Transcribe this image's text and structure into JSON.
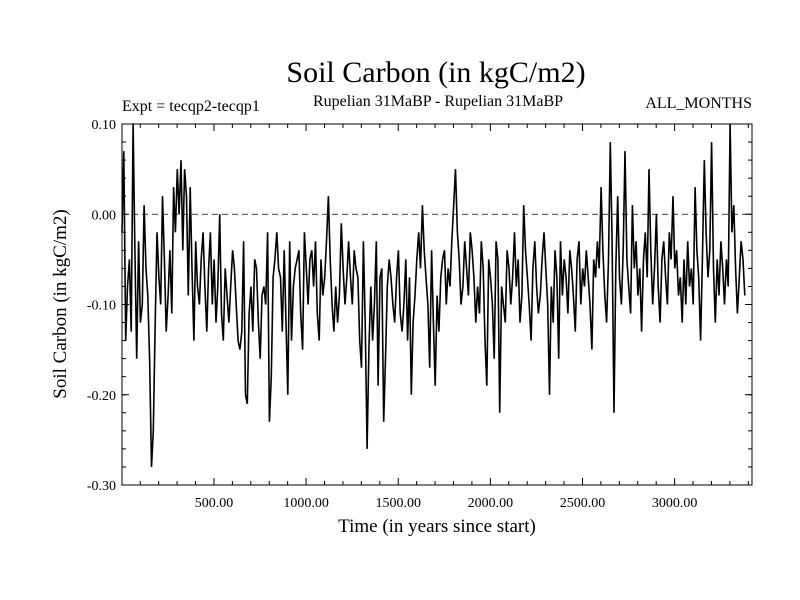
{
  "chart_data": {
    "type": "line",
    "title": "Soil Carbon (in kgC/m2)",
    "subtitle_left": "Expt = tecqp2-tecqp1",
    "subtitle_center": "Rupelian  31MaBP - Rupelian  31MaBP",
    "subtitle_right": "ALL_MONTHS",
    "xlabel": "Time (in years since start)",
    "ylabel": "Soil Carbon (in kgC/m2)",
    "xlim": [
      1,
      3420
    ],
    "ylim": [
      -0.3,
      0.1
    ],
    "x_ticks": [
      500,
      1000,
      1500,
      2000,
      2500,
      3000
    ],
    "x_tick_labels": [
      "500.00",
      "1000.00",
      "1500.00",
      "2000.00",
      "2500.00",
      "3000.00"
    ],
    "y_ticks": [
      0.1,
      0.0,
      -0.1,
      -0.2,
      -0.3
    ],
    "y_tick_labels": [
      "0.10",
      "0.00",
      "-0.10",
      "-0.20",
      "-0.30"
    ],
    "reference_line": 0.0,
    "line_color": "#000000",
    "series": [
      {
        "x_start": 1,
        "x_step": 10,
        "values": [
          -0.02,
          0.07,
          -0.14,
          -0.08,
          -0.05,
          -0.13,
          0.1,
          -0.04,
          -0.16,
          -0.03,
          -0.12,
          -0.1,
          0.01,
          -0.06,
          -0.09,
          -0.16,
          -0.28,
          -0.24,
          -0.12,
          -0.02,
          -0.07,
          -0.1,
          0.02,
          -0.05,
          -0.13,
          -0.09,
          -0.04,
          -0.11,
          0.03,
          -0.02,
          0.05,
          0.0,
          0.06,
          -0.04,
          0.05,
          0.02,
          -0.09,
          0.03,
          -0.06,
          -0.14,
          -0.03,
          -0.08,
          -0.1,
          -0.05,
          -0.02,
          -0.08,
          -0.13,
          -0.06,
          -0.02,
          -0.1,
          -0.05,
          -0.12,
          -0.08,
          0.0,
          -0.11,
          -0.14,
          -0.06,
          -0.09,
          -0.12,
          -0.08,
          -0.04,
          -0.06,
          -0.1,
          -0.14,
          -0.15,
          -0.13,
          -0.03,
          -0.2,
          -0.21,
          -0.11,
          -0.08,
          -0.13,
          -0.05,
          -0.06,
          -0.12,
          -0.16,
          -0.09,
          -0.08,
          -0.1,
          -0.02,
          -0.23,
          -0.18,
          -0.07,
          -0.05,
          -0.02,
          -0.06,
          -0.07,
          -0.13,
          -0.04,
          -0.12,
          -0.2,
          -0.03,
          -0.14,
          -0.08,
          -0.06,
          -0.05,
          -0.04,
          -0.11,
          -0.15,
          -0.02,
          -0.06,
          -0.1,
          -0.05,
          -0.04,
          -0.08,
          -0.03,
          -0.11,
          -0.14,
          -0.05,
          -0.09,
          -0.07,
          -0.03,
          0.02,
          -0.05,
          -0.1,
          -0.13,
          -0.08,
          -0.12,
          -0.09,
          -0.01,
          -0.06,
          -0.1,
          -0.07,
          -0.03,
          -0.07,
          -0.1,
          -0.04,
          -0.06,
          -0.07,
          -0.14,
          -0.17,
          -0.03,
          -0.12,
          -0.26,
          -0.15,
          -0.08,
          -0.14,
          -0.1,
          -0.03,
          -0.19,
          -0.07,
          -0.06,
          -0.23,
          -0.16,
          -0.08,
          -0.05,
          -0.07,
          -0.1,
          -0.12,
          -0.07,
          -0.04,
          -0.11,
          -0.13,
          -0.1,
          -0.05,
          -0.14,
          -0.07,
          -0.2,
          -0.12,
          -0.09,
          -0.05,
          -0.02,
          -0.06,
          0.01,
          -0.04,
          -0.07,
          -0.1,
          -0.17,
          -0.04,
          -0.12,
          -0.19,
          -0.09,
          -0.13,
          -0.07,
          -0.05,
          -0.04,
          -0.1,
          -0.06,
          -0.08,
          -0.03,
          0.01,
          0.05,
          -0.02,
          -0.05,
          -0.1,
          -0.08,
          -0.03,
          -0.06,
          -0.09,
          -0.02,
          -0.04,
          -0.07,
          -0.12,
          -0.08,
          -0.11,
          -0.03,
          -0.06,
          -0.14,
          -0.19,
          -0.05,
          -0.07,
          -0.1,
          -0.16,
          -0.03,
          -0.05,
          -0.22,
          -0.08,
          -0.1,
          -0.12,
          -0.04,
          -0.06,
          -0.1,
          -0.07,
          -0.02,
          -0.08,
          -0.05,
          -0.12,
          -0.09,
          0.01,
          -0.04,
          -0.07,
          -0.1,
          -0.14,
          -0.06,
          -0.03,
          -0.08,
          -0.11,
          -0.09,
          -0.05,
          -0.02,
          -0.06,
          -0.1,
          -0.2,
          -0.08,
          -0.12,
          -0.04,
          -0.07,
          -0.16,
          -0.03,
          -0.09,
          -0.05,
          -0.07,
          -0.11,
          -0.04,
          -0.06,
          -0.09,
          -0.13,
          -0.05,
          -0.03,
          -0.1,
          -0.06,
          -0.08,
          -0.04,
          -0.07,
          -0.1,
          -0.15,
          -0.05,
          -0.07,
          -0.03,
          -0.06,
          0.03,
          -0.04,
          -0.09,
          -0.12,
          -0.05,
          0.08,
          -0.03,
          -0.22,
          -0.06,
          0.02,
          -0.07,
          -0.1,
          -0.04,
          0.07,
          -0.05,
          -0.08,
          -0.11,
          0.01,
          -0.06,
          -0.03,
          -0.09,
          -0.06,
          -0.13,
          -0.05,
          -0.02,
          -0.07,
          0.05,
          -0.04,
          -0.1,
          -0.06,
          0.0,
          -0.08,
          -0.12,
          -0.05,
          -0.03,
          -0.07,
          -0.1,
          -0.02,
          -0.05,
          0.02,
          -0.06,
          -0.04,
          -0.09,
          -0.07,
          -0.12,
          -0.05,
          -0.1,
          -0.03,
          -0.08,
          -0.06,
          -0.1,
          0.03,
          -0.04,
          -0.07,
          -0.14,
          -0.05,
          0.06,
          -0.02,
          -0.07,
          -0.04,
          0.08,
          -0.06,
          -0.12,
          -0.05,
          -0.09,
          -0.03,
          -0.06,
          -0.1,
          -0.05,
          -0.08,
          0.1,
          -0.02,
          0.01,
          -0.06,
          -0.11,
          -0.07,
          -0.03,
          -0.05,
          -0.09
        ]
      }
    ]
  }
}
